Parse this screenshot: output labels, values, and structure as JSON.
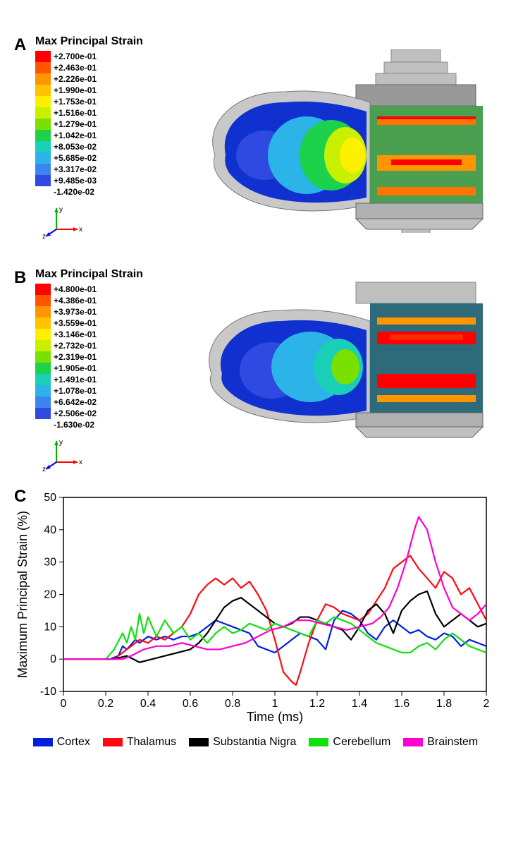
{
  "panel_A": {
    "label": "A",
    "legend_title": "Max Principal Strain",
    "values": [
      "+2.700e-01",
      "+2.463e-01",
      "+2.226e-01",
      "+1.990e-01",
      "+1.753e-01",
      "+1.516e-01",
      "+1.279e-01",
      "+1.042e-01",
      "+8.053e-02",
      "+5.685e-02",
      "+3.317e-02",
      "+9.485e-03",
      "-1.420e-02"
    ],
    "colors": [
      "#FF0000",
      "#FF5500",
      "#FF9500",
      "#FFC300",
      "#FFF000",
      "#C8F000",
      "#7AE000",
      "#1CD24B",
      "#1ACFB8",
      "#2CB3E8",
      "#3E84F0",
      "#2E4AE0",
      "#0C1FC0"
    ]
  },
  "panel_B": {
    "label": "B",
    "legend_title": "Max Principal Strain",
    "values": [
      "+4.800e-01",
      "+4.386e-01",
      "+3.973e-01",
      "+3.559e-01",
      "+3.146e-01",
      "+2.732e-01",
      "+2.319e-01",
      "+1.905e-01",
      "+1.491e-01",
      "+1.078e-01",
      "+6.642e-02",
      "+2.506e-02",
      "-1.630e-02"
    ],
    "colors": [
      "#FF0000",
      "#FF5500",
      "#FF9500",
      "#FFC300",
      "#FFF000",
      "#C8F000",
      "#7AE000",
      "#1CD24B",
      "#1ACFB8",
      "#2CB3E8",
      "#3E84F0",
      "#2E4AE0",
      "#0C1FC0"
    ]
  },
  "axis_triad": {
    "x_label": "x",
    "y_label": "y",
    "z_label": "z",
    "x_color": "#FF0000",
    "y_color": "#00B000",
    "z_color": "#0000FF"
  },
  "panel_C": {
    "label": "C",
    "xlabel": "Time (ms)",
    "ylabel": "Maximum Principal Strain (%)",
    "label_fontsize": 18,
    "tick_fontsize": 16,
    "xlim": [
      0,
      2
    ],
    "ylim": [
      -10,
      50
    ],
    "xticks": [
      0,
      0.2,
      0.4,
      0.6,
      0.8,
      1,
      1.2,
      1.4,
      1.6,
      1.8,
      2
    ],
    "yticks": [
      -10,
      0,
      10,
      20,
      30,
      40,
      50
    ],
    "line_width": 2.2,
    "background_color": "#ffffff",
    "axis_color": "#000000",
    "series": [
      {
        "name": "Cortex",
        "color": "#0020E0",
        "x": [
          0,
          0.22,
          0.26,
          0.28,
          0.3,
          0.34,
          0.36,
          0.4,
          0.44,
          0.48,
          0.52,
          0.56,
          0.6,
          0.64,
          0.68,
          0.72,
          0.76,
          0.8,
          0.84,
          0.88,
          0.92,
          0.96,
          1.0,
          1.04,
          1.08,
          1.12,
          1.16,
          1.2,
          1.24,
          1.28,
          1.32,
          1.36,
          1.4,
          1.44,
          1.48,
          1.52,
          1.56,
          1.6,
          1.64,
          1.68,
          1.72,
          1.76,
          1.8,
          1.84,
          1.88,
          1.92,
          1.96,
          2.0
        ],
        "y": [
          0,
          0,
          1,
          4,
          3,
          6,
          5,
          7,
          6,
          7,
          6,
          7,
          7,
          8,
          10,
          12,
          11,
          10,
          9,
          8,
          4,
          3,
          2,
          4,
          6,
          8,
          7,
          6,
          3,
          12,
          15,
          14,
          12,
          8,
          6,
          10,
          12,
          10,
          8,
          9,
          7,
          6,
          8,
          7,
          4,
          6,
          5,
          4
        ]
      },
      {
        "name": "Thalamus",
        "color": "#FF0810",
        "x": [
          0,
          0.24,
          0.28,
          0.32,
          0.36,
          0.4,
          0.44,
          0.48,
          0.52,
          0.56,
          0.6,
          0.64,
          0.68,
          0.72,
          0.76,
          0.8,
          0.84,
          0.88,
          0.92,
          0.96,
          1.0,
          1.04,
          1.08,
          1.1,
          1.12,
          1.16,
          1.2,
          1.24,
          1.28,
          1.32,
          1.36,
          1.4,
          1.44,
          1.48,
          1.52,
          1.56,
          1.6,
          1.64,
          1.68,
          1.72,
          1.76,
          1.8,
          1.84,
          1.88,
          1.92,
          1.96,
          2.0
        ],
        "y": [
          0,
          0,
          2,
          4,
          6,
          5,
          7,
          6,
          8,
          10,
          14,
          20,
          23,
          25,
          23,
          25,
          22,
          24,
          20,
          15,
          6,
          -4,
          -7,
          -8,
          -4,
          5,
          12,
          17,
          16,
          14,
          13,
          12,
          14,
          18,
          22,
          28,
          30,
          32,
          28,
          25,
          22,
          27,
          25,
          20,
          22,
          17,
          12
        ]
      },
      {
        "name": "Substantia Nigra",
        "color": "#000000",
        "x": [
          0,
          0.24,
          0.3,
          0.36,
          0.42,
          0.48,
          0.54,
          0.6,
          0.64,
          0.68,
          0.72,
          0.76,
          0.8,
          0.84,
          0.88,
          0.92,
          0.96,
          1.0,
          1.04,
          1.08,
          1.12,
          1.16,
          1.2,
          1.24,
          1.28,
          1.32,
          1.36,
          1.4,
          1.44,
          1.48,
          1.52,
          1.56,
          1.6,
          1.64,
          1.68,
          1.72,
          1.76,
          1.8,
          1.84,
          1.88,
          1.92,
          1.96,
          2.0
        ],
        "y": [
          0,
          0,
          1,
          -1,
          0,
          1,
          2,
          3,
          5,
          8,
          12,
          16,
          18,
          19,
          17,
          15,
          13,
          11,
          10,
          11,
          13,
          13,
          12,
          11,
          10,
          9,
          6,
          10,
          15,
          17,
          14,
          8,
          15,
          18,
          20,
          21,
          14,
          10,
          12,
          14,
          12,
          10,
          11
        ]
      },
      {
        "name": "Cerebellum",
        "color": "#10E010",
        "x": [
          0,
          0.2,
          0.24,
          0.28,
          0.3,
          0.32,
          0.34,
          0.36,
          0.38,
          0.4,
          0.44,
          0.48,
          0.52,
          0.56,
          0.6,
          0.64,
          0.68,
          0.72,
          0.76,
          0.8,
          0.84,
          0.88,
          0.92,
          0.96,
          1.0,
          1.04,
          1.08,
          1.12,
          1.16,
          1.2,
          1.24,
          1.28,
          1.32,
          1.36,
          1.4,
          1.44,
          1.48,
          1.52,
          1.56,
          1.6,
          1.64,
          1.68,
          1.72,
          1.76,
          1.8,
          1.84,
          1.88,
          1.92,
          1.96,
          2.0
        ],
        "y": [
          0,
          0,
          3,
          8,
          5,
          10,
          6,
          14,
          8,
          13,
          7,
          12,
          8,
          10,
          6,
          8,
          5,
          8,
          10,
          8,
          9,
          11,
          10,
          9,
          11,
          10,
          9,
          8,
          7,
          12,
          11,
          13,
          12,
          11,
          9,
          7,
          5,
          4,
          3,
          2,
          2,
          4,
          5,
          3,
          6,
          8,
          6,
          4,
          3,
          2
        ]
      },
      {
        "name": "Brainstem",
        "color": "#FF00D0",
        "x": [
          0,
          0.28,
          0.32,
          0.38,
          0.44,
          0.5,
          0.56,
          0.62,
          0.68,
          0.74,
          0.8,
          0.86,
          0.92,
          0.98,
          1.04,
          1.1,
          1.16,
          1.22,
          1.28,
          1.34,
          1.4,
          1.46,
          1.5,
          1.54,
          1.58,
          1.62,
          1.66,
          1.68,
          1.72,
          1.76,
          1.8,
          1.84,
          1.88,
          1.92,
          1.96,
          2.0
        ],
        "y": [
          0,
          0,
          1,
          3,
          4,
          4,
          5,
          4,
          3,
          3,
          4,
          5,
          7,
          9,
          10,
          12,
          12,
          11,
          10,
          9,
          10,
          11,
          13,
          16,
          22,
          30,
          40,
          44,
          40,
          30,
          22,
          16,
          14,
          12,
          14,
          17
        ]
      }
    ]
  },
  "legend_items": [
    {
      "label": "Cortex",
      "color": "#0020E0"
    },
    {
      "label": "Thalamus",
      "color": "#FF0810"
    },
    {
      "label": "Substantia Nigra",
      "color": "#000000"
    },
    {
      "label": "Cerebellum",
      "color": "#10E010"
    },
    {
      "label": "Brainstem",
      "color": "#FF00D0"
    }
  ]
}
